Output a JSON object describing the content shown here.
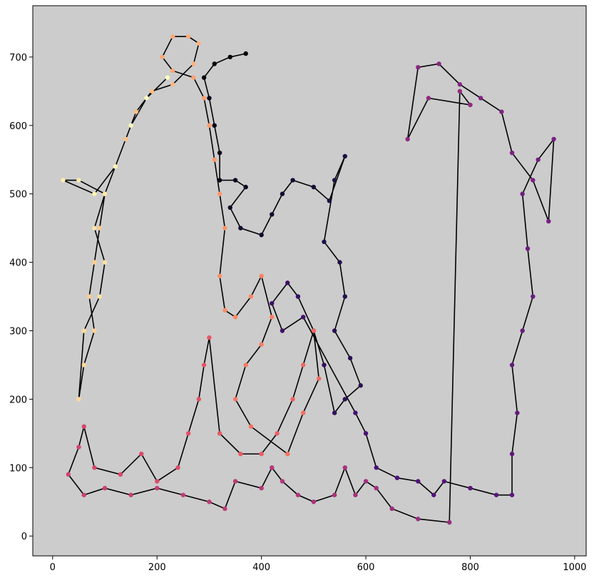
{
  "chart_data": {
    "type": "scatter",
    "connect": true,
    "line_color": "#000000",
    "colormap": "magma",
    "background": "#cccccc",
    "x": [
      370,
      340,
      310,
      290,
      300,
      310,
      320,
      320,
      350,
      370,
      340,
      360,
      400,
      420,
      440,
      460,
      500,
      530,
      560,
      540,
      520,
      550,
      560,
      540,
      570,
      590,
      560,
      540,
      520,
      500,
      470,
      450,
      420,
      440,
      480,
      580,
      600,
      620,
      660,
      700,
      730,
      750,
      800,
      850,
      880,
      880,
      890,
      880,
      900,
      920,
      910,
      900,
      930,
      960,
      950,
      920,
      880,
      860,
      820,
      780,
      740,
      700,
      680,
      720,
      800,
      780,
      760,
      700,
      650,
      620,
      600,
      580,
      560,
      540,
      500,
      470,
      440,
      420,
      400,
      350,
      330,
      300,
      250,
      200,
      150,
      100,
      60,
      30,
      50,
      60,
      80,
      130,
      170,
      200,
      240,
      260,
      280,
      290,
      300,
      320,
      360,
      400,
      430,
      460,
      480,
      500,
      510,
      480,
      450,
      380,
      350,
      370,
      400,
      420,
      400,
      380,
      350,
      330,
      320,
      330,
      320,
      310,
      300,
      290,
      270,
      230,
      210,
      230,
      260,
      280,
      270,
      230,
      190,
      160,
      140,
      120,
      100,
      90,
      80,
      70,
      80,
      60,
      50,
      60,
      90,
      100,
      80,
      100,
      50,
      20,
      80,
      120,
      150,
      180,
      220
    ],
    "y": [
      705,
      700,
      690,
      670,
      640,
      600,
      560,
      520,
      520,
      510,
      480,
      450,
      440,
      470,
      500,
      520,
      510,
      490,
      555,
      520,
      430,
      400,
      350,
      300,
      260,
      220,
      200,
      180,
      250,
      300,
      350,
      370,
      340,
      300,
      320,
      180,
      150,
      100,
      85,
      80,
      60,
      80,
      70,
      60,
      60,
      120,
      180,
      250,
      300,
      350,
      420,
      500,
      550,
      580,
      460,
      520,
      560,
      620,
      640,
      660,
      690,
      685,
      580,
      640,
      630,
      650,
      20,
      25,
      40,
      70,
      80,
      60,
      100,
      60,
      50,
      60,
      80,
      100,
      70,
      80,
      40,
      50,
      60,
      70,
      60,
      70,
      60,
      90,
      130,
      160,
      100,
      90,
      120,
      80,
      100,
      150,
      200,
      250,
      290,
      150,
      120,
      120,
      150,
      200,
      250,
      300,
      230,
      180,
      120,
      160,
      200,
      250,
      280,
      320,
      380,
      350,
      320,
      330,
      380,
      450,
      500,
      550,
      600,
      640,
      670,
      680,
      700,
      730,
      730,
      720,
      690,
      660,
      650,
      620,
      580,
      540,
      500,
      450,
      400,
      350,
      300,
      250,
      200,
      300,
      350,
      400,
      450,
      500,
      520,
      520,
      500,
      540,
      600,
      640,
      670
    ],
    "xlim": [
      -38,
      1022
    ],
    "ylim": [
      -29,
      775
    ],
    "xticks": [
      0,
      200,
      400,
      600,
      800,
      1000
    ],
    "yticks": [
      0,
      100,
      200,
      300,
      400,
      500,
      600,
      700
    ]
  }
}
